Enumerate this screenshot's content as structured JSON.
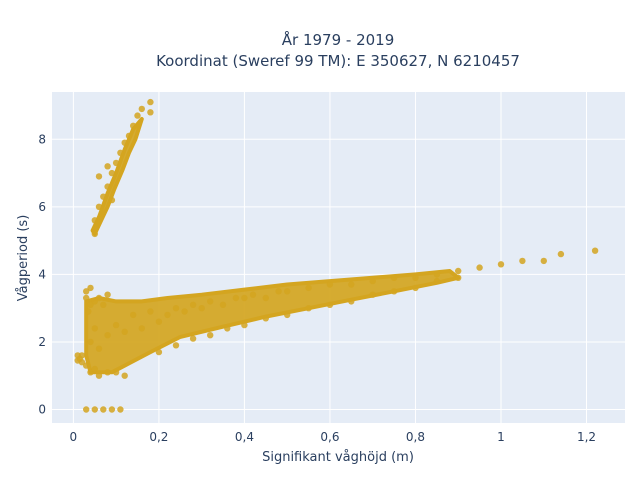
{
  "chart_data": {
    "type": "scatter",
    "title_line1": "År 1979 - 2019",
    "title_line2": "Koordinat (Sweref 99 TM): E 350627, N 6210457",
    "xlabel": "Signifikant våghöjd (m)",
    "ylabel": "Vågperiod (s)",
    "xlim": [
      -0.05,
      1.29
    ],
    "ylim": [
      -0.4,
      9.4
    ],
    "x_ticks": [
      0,
      0.2,
      0.4,
      0.6,
      0.8,
      1,
      1.2
    ],
    "x_tick_labels": [
      "0",
      "0,2",
      "0,4",
      "0,6",
      "0,8",
      "1",
      "1,2"
    ],
    "y_ticks": [
      0,
      2,
      4,
      6,
      8
    ],
    "y_tick_labels": [
      "0",
      "2",
      "4",
      "6",
      "8"
    ],
    "grid": true,
    "legend": "none",
    "marker_color": "#d4a520",
    "plot_bg": "#e5ecf6",
    "series": [
      {
        "points": [
          [
            0.01,
            1.6
          ],
          [
            0.01,
            1.45
          ],
          [
            0.015,
            1.5
          ],
          [
            0.02,
            1.6
          ],
          [
            0.02,
            1.4
          ],
          [
            0.03,
            3.5
          ],
          [
            0.03,
            3.3
          ],
          [
            0.035,
            2.9
          ],
          [
            0.04,
            3.6
          ],
          [
            0.04,
            3.1
          ],
          [
            0.05,
            3.2
          ],
          [
            0.05,
            2.4
          ],
          [
            0.06,
            3.3
          ],
          [
            0.07,
            3.1
          ],
          [
            0.08,
            3.4
          ],
          [
            0.03,
            1.3
          ],
          [
            0.04,
            1.1
          ],
          [
            0.05,
            1.2
          ],
          [
            0.06,
            1.0
          ],
          [
            0.08,
            1.1
          ],
          [
            0.1,
            1.1
          ],
          [
            0.12,
            1.0
          ],
          [
            0.04,
            2.0
          ],
          [
            0.06,
            1.8
          ],
          [
            0.08,
            2.2
          ],
          [
            0.1,
            2.5
          ],
          [
            0.12,
            2.3
          ],
          [
            0.14,
            2.8
          ],
          [
            0.16,
            2.4
          ],
          [
            0.18,
            2.9
          ],
          [
            0.2,
            2.6
          ],
          [
            0.22,
            2.8
          ],
          [
            0.24,
            3.0
          ],
          [
            0.26,
            2.9
          ],
          [
            0.28,
            3.1
          ],
          [
            0.3,
            3.0
          ],
          [
            0.32,
            3.2
          ],
          [
            0.35,
            3.1
          ],
          [
            0.38,
            3.3
          ],
          [
            0.4,
            3.3
          ],
          [
            0.42,
            3.4
          ],
          [
            0.45,
            3.3
          ],
          [
            0.48,
            3.5
          ],
          [
            0.5,
            3.5
          ],
          [
            0.55,
            3.6
          ],
          [
            0.6,
            3.7
          ],
          [
            0.65,
            3.7
          ],
          [
            0.7,
            3.8
          ],
          [
            0.75,
            3.9
          ],
          [
            0.8,
            3.9
          ],
          [
            0.85,
            4.0
          ],
          [
            0.9,
            4.1
          ],
          [
            0.95,
            4.2
          ],
          [
            1.0,
            4.3
          ],
          [
            1.05,
            4.4
          ],
          [
            1.1,
            4.4
          ],
          [
            1.14,
            4.6
          ],
          [
            1.22,
            4.7
          ],
          [
            0.2,
            1.7
          ],
          [
            0.24,
            1.9
          ],
          [
            0.28,
            2.1
          ],
          [
            0.32,
            2.2
          ],
          [
            0.36,
            2.4
          ],
          [
            0.4,
            2.5
          ],
          [
            0.45,
            2.7
          ],
          [
            0.5,
            2.8
          ],
          [
            0.55,
            3.0
          ],
          [
            0.6,
            3.1
          ],
          [
            0.65,
            3.2
          ],
          [
            0.7,
            3.4
          ],
          [
            0.75,
            3.5
          ],
          [
            0.8,
            3.6
          ],
          [
            0.85,
            3.8
          ],
          [
            0.9,
            3.9
          ],
          [
            0.05,
            5.2
          ],
          [
            0.05,
            5.6
          ],
          [
            0.06,
            6.0
          ],
          [
            0.07,
            6.3
          ],
          [
            0.08,
            6.6
          ],
          [
            0.09,
            7.0
          ],
          [
            0.1,
            7.3
          ],
          [
            0.11,
            7.6
          ],
          [
            0.12,
            7.9
          ],
          [
            0.13,
            8.1
          ],
          [
            0.14,
            8.4
          ],
          [
            0.15,
            8.7
          ],
          [
            0.16,
            8.9
          ],
          [
            0.18,
            9.1
          ],
          [
            0.18,
            8.8
          ],
          [
            0.06,
            6.9
          ],
          [
            0.08,
            7.2
          ],
          [
            0.09,
            6.2
          ],
          [
            0.03,
            0.0
          ],
          [
            0.05,
            0.0
          ],
          [
            0.07,
            0.0
          ],
          [
            0.09,
            0.0
          ],
          [
            0.11,
            0.0
          ]
        ]
      }
    ]
  }
}
